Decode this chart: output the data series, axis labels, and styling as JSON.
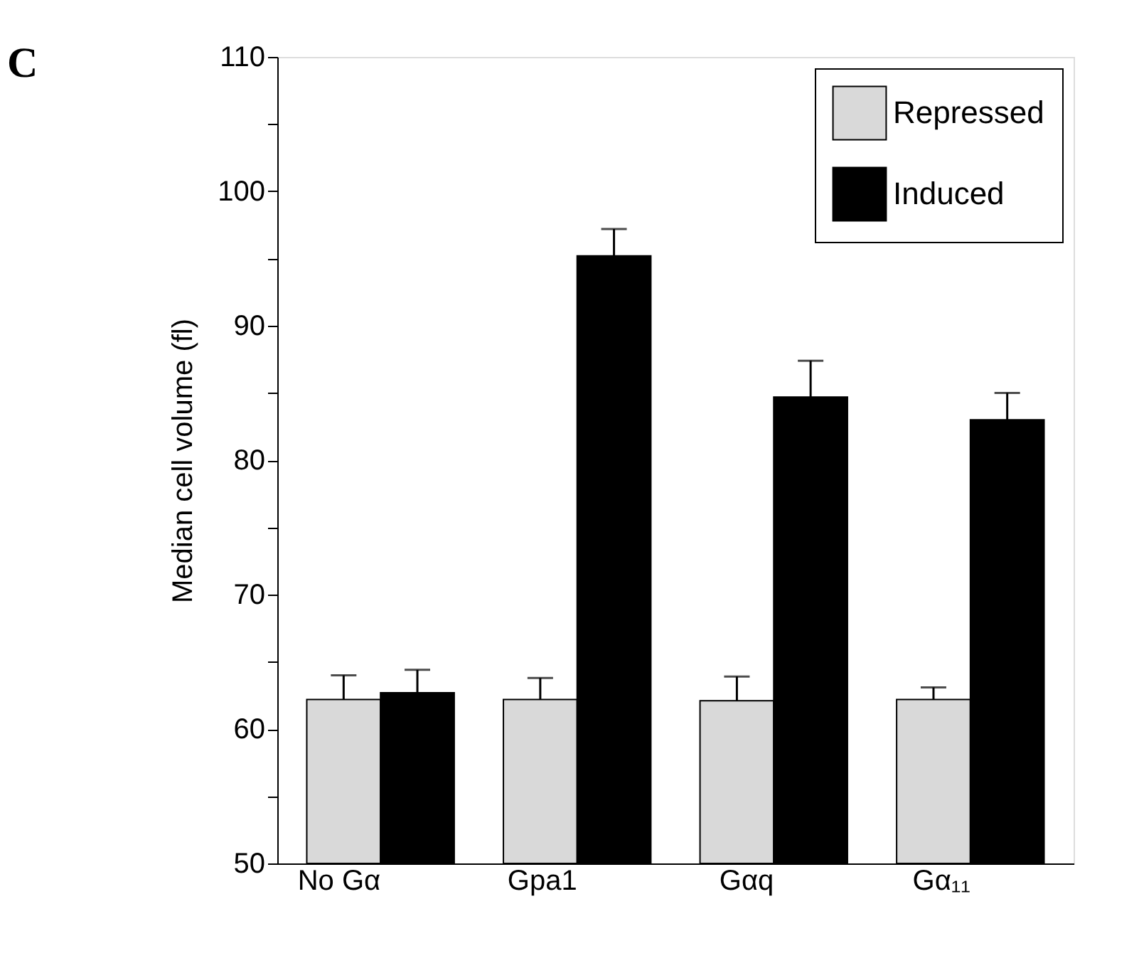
{
  "chart_data": {
    "type": "bar",
    "ylabel": "Median cell volume (fl)",
    "categories": [
      "No Gα",
      "Gpa1",
      "Gαq",
      "Gα₁₁"
    ],
    "series": [
      {
        "name": "Repressed",
        "color": "#d9d9d9",
        "values": [
          62.2,
          62.2,
          62.1,
          62.2
        ],
        "errors": [
          1.8,
          1.6,
          1.8,
          0.9
        ]
      },
      {
        "name": "Induced",
        "color": "#000000",
        "values": [
          62.7,
          95.2,
          84.7,
          83.0
        ],
        "errors": [
          1.7,
          2.0,
          2.7,
          2.0
        ]
      }
    ],
    "ylim": [
      50,
      110
    ],
    "yticks": [
      50,
      {
        "value": 55,
        "label": null
      },
      60,
      {
        "value": 65,
        "label": null
      },
      70,
      {
        "value": 75,
        "label": null
      },
      80,
      {
        "value": 85,
        "label": null
      },
      90,
      {
        "value": 95,
        "label": null
      },
      100,
      {
        "value": 105,
        "label": null
      },
      110
    ],
    "legend": "top right",
    "grid": false,
    "annotations": [
      "C"
    ]
  }
}
